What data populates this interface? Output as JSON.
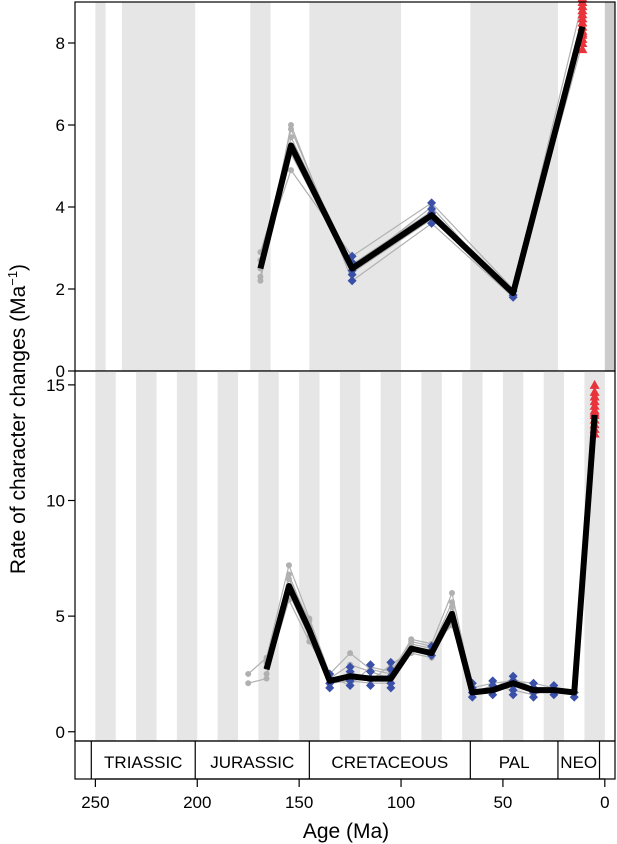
{
  "chart_data": [
    {
      "type": "line",
      "panel": "top",
      "xlim": [
        260,
        -5
      ],
      "ylim": [
        0,
        9
      ],
      "yticks": [
        0,
        2,
        4,
        6,
        8
      ],
      "bands_light": [
        [
          250,
          245
        ],
        [
          237,
          201
        ],
        [
          174,
          164
        ],
        [
          145,
          100
        ],
        [
          66,
          23
        ]
      ],
      "bands_dark": [
        [
          0,
          -5
        ]
      ],
      "mean_series": {
        "x": [
          169,
          154,
          124,
          85,
          45,
          11
        ],
        "y": [
          2.5,
          5.5,
          2.5,
          3.8,
          1.9,
          8.4
        ]
      },
      "sample_series": [
        {
          "x": [
            169,
            154,
            124,
            85,
            45,
            11
          ],
          "y": [
            2.2,
            6.0,
            2.2,
            3.6,
            1.8,
            8.2
          ]
        },
        {
          "x": [
            169,
            154,
            124,
            85,
            45,
            11
          ],
          "y": [
            2.3,
            5.7,
            2.6,
            3.9,
            1.9,
            8.0
          ]
        },
        {
          "x": [
            169,
            154,
            124,
            85,
            45,
            11
          ],
          "y": [
            2.7,
            4.9,
            2.8,
            4.1,
            2.0,
            9.0
          ]
        },
        {
          "x": [
            169,
            154,
            124,
            85,
            45,
            11
          ],
          "y": [
            2.5,
            5.9,
            2.4,
            3.7,
            1.9,
            8.6
          ]
        },
        {
          "x": [
            169,
            154,
            124,
            85,
            45,
            11
          ],
          "y": [
            2.9,
            5.3,
            2.5,
            4.0,
            1.8,
            8.3
          ]
        }
      ],
      "blue_points": {
        "x": [
          124,
          124,
          124,
          124,
          124,
          124,
          85,
          85,
          85,
          85,
          85,
          45,
          45,
          45
        ],
        "y": [
          2.2,
          2.35,
          2.45,
          2.55,
          2.65,
          2.8,
          3.6,
          3.75,
          3.85,
          3.95,
          4.1,
          1.8,
          1.85,
          1.95
        ]
      },
      "red_points": {
        "x": [
          11,
          11,
          11,
          11,
          11,
          11,
          11,
          11,
          11,
          11,
          11,
          11,
          11,
          11
        ],
        "y": [
          7.85,
          8.0,
          8.1,
          8.2,
          8.3,
          8.4,
          8.5,
          8.6,
          8.7,
          8.8,
          8.9,
          9.0,
          9.1,
          8.25
        ]
      }
    },
    {
      "type": "line",
      "panel": "bottom",
      "xlim": [
        260,
        -5
      ],
      "ylim": [
        -0.4,
        15.6
      ],
      "yticks": [
        0,
        5,
        10,
        15
      ],
      "bands_light": [
        [
          250,
          240
        ],
        [
          230,
          220
        ],
        [
          210,
          200
        ],
        [
          190,
          180
        ],
        [
          170,
          160
        ],
        [
          150,
          140
        ],
        [
          130,
          120
        ],
        [
          110,
          100
        ],
        [
          90,
          80
        ],
        [
          70,
          60
        ],
        [
          50,
          40
        ],
        [
          30,
          20
        ],
        [
          10,
          0
        ]
      ],
      "bands_dark": [],
      "mean_series": {
        "x": [
          166,
          155,
          145,
          135,
          125,
          115,
          105,
          95,
          85,
          75,
          65,
          55,
          45,
          35,
          25,
          15,
          5
        ],
        "y": [
          2.7,
          6.3,
          4.4,
          2.2,
          2.4,
          2.3,
          2.3,
          3.6,
          3.4,
          5.1,
          1.7,
          1.8,
          2.1,
          1.8,
          1.8,
          1.7,
          13.7
        ]
      },
      "sample_series": [
        {
          "x": [
            175,
            166,
            155,
            145,
            135,
            125,
            115,
            105,
            95,
            85,
            75,
            65,
            55,
            45,
            35,
            25,
            15,
            5
          ],
          "y": [
            2.5,
            3.2,
            7.2,
            4.9,
            2.5,
            3.4,
            2.7,
            2.5,
            4.0,
            3.8,
            6.0,
            1.9,
            2.1,
            2.2,
            2.1,
            1.9,
            1.7,
            14.5
          ]
        },
        {
          "x": [
            175,
            166,
            155,
            145,
            135,
            125,
            115,
            105,
            95,
            85,
            75,
            65,
            55,
            45,
            35,
            25,
            15,
            5
          ],
          "y": [
            2.1,
            2.3,
            6.8,
            4.6,
            2.3,
            2.9,
            2.6,
            2.3,
            3.8,
            3.6,
            5.6,
            1.8,
            1.9,
            2.3,
            1.9,
            1.8,
            1.7,
            13.5
          ]
        },
        {
          "x": [
            166,
            155,
            145,
            135,
            125,
            115,
            105,
            95,
            85,
            75,
            65,
            55,
            45,
            35,
            25,
            15,
            5
          ],
          "y": [
            2.8,
            6.0,
            4.1,
            2.1,
            2.2,
            2.1,
            2.1,
            3.4,
            3.2,
            4.8,
            1.6,
            1.7,
            2.0,
            1.7,
            1.7,
            1.6,
            13.2
          ]
        },
        {
          "x": [
            166,
            155,
            145,
            135,
            125,
            115,
            105,
            95,
            85,
            75,
            65,
            55,
            45,
            35,
            25,
            15,
            5
          ],
          "y": [
            2.5,
            5.7,
            3.9,
            2.4,
            2.0,
            2.8,
            2.6,
            3.9,
            3.7,
            4.6,
            1.7,
            2.0,
            1.8,
            1.6,
            1.9,
            1.8,
            14.0
          ]
        },
        {
          "x": [
            166,
            155,
            145,
            135,
            125,
            115,
            105,
            95,
            85,
            75,
            65,
            55,
            45,
            35,
            25,
            15,
            5
          ],
          "y": [
            3.0,
            6.6,
            4.8,
            2.0,
            2.6,
            2.2,
            2.9,
            3.5,
            3.3,
            5.4,
            1.8,
            1.7,
            2.2,
            1.9,
            1.8,
            1.7,
            13.0
          ]
        }
      ],
      "blue_points": {
        "x": [
          135,
          135,
          135,
          135,
          125,
          125,
          125,
          125,
          125,
          115,
          115,
          115,
          115,
          105,
          105,
          105,
          105,
          105,
          85,
          85,
          85,
          65,
          65,
          65,
          65,
          55,
          55,
          55,
          55,
          45,
          45,
          45,
          45,
          45,
          35,
          35,
          35,
          35,
          25,
          25,
          25,
          15,
          15
        ],
        "y": [
          1.9,
          2.1,
          2.3,
          2.5,
          2.0,
          2.2,
          2.4,
          2.6,
          2.8,
          2.0,
          2.3,
          2.6,
          2.9,
          1.9,
          2.1,
          2.4,
          2.7,
          3.0,
          3.3,
          3.5,
          3.7,
          1.5,
          1.7,
          1.9,
          2.1,
          1.6,
          1.8,
          2.0,
          2.2,
          1.6,
          1.8,
          2.0,
          2.2,
          2.4,
          1.5,
          1.7,
          1.9,
          2.1,
          1.6,
          1.8,
          2.0,
          1.5,
          1.7
        ]
      },
      "red_points": {
        "x": [
          5,
          5,
          5,
          5,
          5,
          5,
          5,
          5,
          5,
          5,
          5,
          5
        ],
        "y": [
          12.9,
          13.1,
          13.3,
          13.5,
          13.7,
          13.9,
          14.1,
          14.3,
          14.5,
          14.7,
          15.0,
          13.8
        ]
      }
    }
  ],
  "axes": {
    "ylabel_main": "Rate of character changes (Ma",
    "ylabel_sup": "−1",
    "ylabel_close": ")",
    "xlabel": "Age (Ma)",
    "xticks": [
      250,
      200,
      150,
      100,
      50,
      0
    ]
  },
  "periods": [
    {
      "name": "TRIASSIC",
      "start": 252,
      "end": 201
    },
    {
      "name": "JURASSIC",
      "start": 201,
      "end": 145
    },
    {
      "name": "CRETACEOUS",
      "start": 145,
      "end": 66
    },
    {
      "name": "PAL",
      "start": 66,
      "end": 23
    },
    {
      "name": "NEO",
      "start": 23,
      "end": 2.6
    }
  ],
  "colors": {
    "band_light": "#e6e6e6",
    "band_dark": "#cccccc",
    "sample_line": "#b0b0b0",
    "mean_line": "#000000",
    "blue_marker": "#3a4fa8",
    "red_marker": "#e8333b"
  }
}
